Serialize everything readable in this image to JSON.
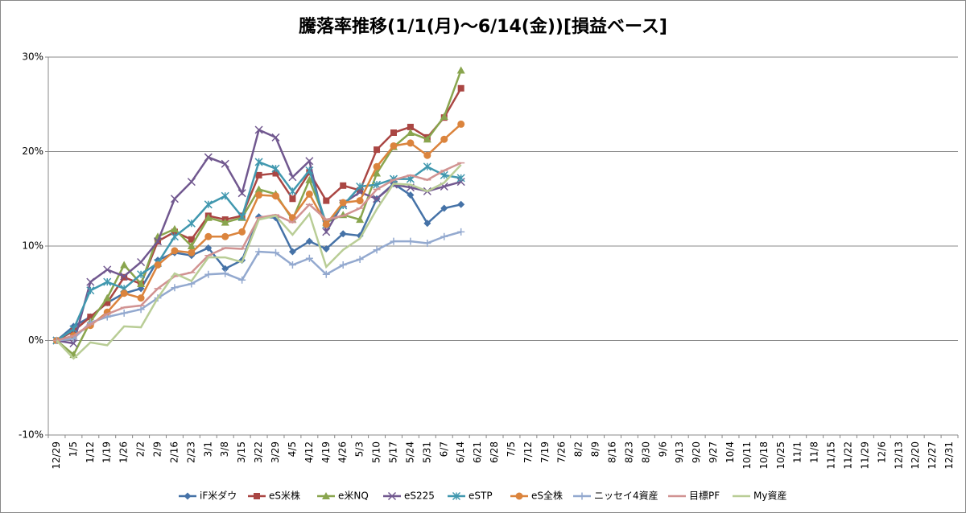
{
  "chart_data": {
    "type": "line",
    "title": "騰落率推移(1/1(月)～6/14(金))[損益ベース]",
    "categories": [
      "12/29",
      "1/5",
      "1/12",
      "1/19",
      "1/26",
      "2/2",
      "2/9",
      "2/16",
      "2/23",
      "3/1",
      "3/8",
      "3/15",
      "3/22",
      "3/29",
      "4/5",
      "4/12",
      "4/19",
      "4/26",
      "5/3",
      "5/10",
      "5/17",
      "5/24",
      "5/31",
      "6/7",
      "6/14",
      "6/21",
      "6/28",
      "7/5",
      "7/12",
      "7/19",
      "7/26",
      "8/2",
      "8/9",
      "8/16",
      "8/23",
      "8/30",
      "9/6",
      "9/13",
      "9/20",
      "9/27",
      "10/4",
      "10/11",
      "10/18",
      "10/25",
      "11/1",
      "11/8",
      "11/15",
      "11/22",
      "11/29",
      "12/6",
      "12/13",
      "12/20",
      "12/27",
      "12/31"
    ],
    "ylim": [
      -10,
      30
    ],
    "yticks": [
      {
        "value": -10,
        "label": "-10%"
      },
      {
        "value": 0,
        "label": "0%"
      },
      {
        "value": 10,
        "label": "10%"
      },
      {
        "value": 20,
        "label": "20%"
      },
      {
        "value": 30,
        "label": "30%"
      }
    ],
    "grid": true,
    "legend": "bottom",
    "series": [
      {
        "name": "iF米ダウ",
        "color": "#4572a7",
        "marker": "diamond",
        "values": [
          0,
          1.5,
          2.5,
          4,
          5,
          5.5,
          8.5,
          9.3,
          9,
          9.8,
          7.6,
          8.5,
          13.1,
          13,
          9.4,
          10.5,
          9.7,
          11.3,
          11.1,
          15,
          16.6,
          15.4,
          12.4,
          14,
          14.4,
          null,
          null,
          null,
          null,
          null,
          null,
          null,
          null,
          null,
          null,
          null,
          null,
          null,
          null,
          null,
          null,
          null,
          null,
          null,
          null,
          null,
          null,
          null,
          null,
          null,
          null,
          null,
          null,
          null
        ]
      },
      {
        "name": "eS米株",
        "color": "#aa4643",
        "marker": "square",
        "values": [
          0,
          1,
          2.5,
          4,
          6.7,
          6,
          10.5,
          11.5,
          10.7,
          13.2,
          12.8,
          13.2,
          17.5,
          17.7,
          15,
          17.8,
          14.8,
          16.4,
          15.9,
          20.2,
          22,
          22.6,
          21.5,
          23.6,
          26.7,
          null,
          null,
          null,
          null,
          null,
          null,
          null,
          null,
          null,
          null,
          null,
          null,
          null,
          null,
          null,
          null,
          null,
          null,
          null,
          null,
          null,
          null,
          null,
          null,
          null,
          null,
          null,
          null,
          null
        ]
      },
      {
        "name": "e米NQ",
        "color": "#89a54e",
        "marker": "triangle",
        "values": [
          0,
          -1.5,
          2,
          4.5,
          8,
          6,
          11,
          11.8,
          10,
          13,
          12.5,
          13,
          16,
          15.5,
          12.8,
          17,
          12.5,
          13.3,
          12.8,
          17.7,
          20.5,
          22,
          21.3,
          23.7,
          28.6,
          null,
          null,
          null,
          null,
          null,
          null,
          null,
          null,
          null,
          null,
          null,
          null,
          null,
          null,
          null,
          null,
          null,
          null,
          null,
          null,
          null,
          null,
          null,
          null,
          null,
          null,
          null,
          null,
          null
        ]
      },
      {
        "name": "eS225",
        "color": "#71588f",
        "marker": "x",
        "values": [
          0,
          -0.3,
          6.2,
          7.5,
          6.8,
          8.3,
          10.5,
          15,
          16.8,
          19.4,
          18.7,
          15.6,
          22.3,
          21.5,
          17.3,
          19,
          11.5,
          14.5,
          15.7,
          15,
          16.5,
          16.2,
          15.8,
          16.3,
          16.8,
          null,
          null,
          null,
          null,
          null,
          null,
          null,
          null,
          null,
          null,
          null,
          null,
          null,
          null,
          null,
          null,
          null,
          null,
          null,
          null,
          null,
          null,
          null,
          null,
          null,
          null,
          null,
          null,
          null
        ]
      },
      {
        "name": "eSTP",
        "color": "#4198af",
        "marker": "star",
        "values": [
          0,
          1.2,
          5.3,
          6.2,
          5.5,
          7,
          8.2,
          11,
          12.4,
          14.4,
          15.3,
          13.1,
          18.9,
          18.2,
          15.8,
          18,
          12.3,
          14.3,
          16.3,
          16.5,
          17.1,
          17.1,
          18.4,
          17.5,
          17.2,
          null,
          null,
          null,
          null,
          null,
          null,
          null,
          null,
          null,
          null,
          null,
          null,
          null,
          null,
          null,
          null,
          null,
          null,
          null,
          null,
          null,
          null,
          null,
          null,
          null,
          null,
          null,
          null,
          null
        ]
      },
      {
        "name": "eS全株",
        "color": "#db843d",
        "marker": "circle",
        "values": [
          0,
          0.5,
          1.6,
          3,
          5,
          4.5,
          8,
          9.5,
          9.3,
          11,
          11,
          11.5,
          15.4,
          15.3,
          13,
          15.5,
          12.3,
          14.6,
          14.8,
          18.4,
          20.6,
          20.9,
          19.6,
          21.3,
          22.9,
          null,
          null,
          null,
          null,
          null,
          null,
          null,
          null,
          null,
          null,
          null,
          null,
          null,
          null,
          null,
          null,
          null,
          null,
          null,
          null,
          null,
          null,
          null,
          null,
          null,
          null,
          null,
          null,
          null
        ]
      },
      {
        "name": "ニッセイ4資産",
        "color": "#93a9cf",
        "marker": "plus",
        "values": [
          0,
          0.2,
          1.9,
          2.5,
          2.9,
          3.3,
          4.5,
          5.6,
          6,
          7,
          7.1,
          6.4,
          9.4,
          9.3,
          8,
          8.7,
          7,
          8,
          8.6,
          9.6,
          10.5,
          10.5,
          10.3,
          11,
          11.5,
          null,
          null,
          null,
          null,
          null,
          null,
          null,
          null,
          null,
          null,
          null,
          null,
          null,
          null,
          null,
          null,
          null,
          null,
          null,
          null,
          null,
          null,
          null,
          null,
          null,
          null,
          null,
          null,
          null
        ]
      },
      {
        "name": "目標PF",
        "color": "#d19392",
        "marker": "dash",
        "values": [
          0,
          0.5,
          1.7,
          2.8,
          3.5,
          3.7,
          5.5,
          6.8,
          7.2,
          9,
          9.8,
          9.7,
          13,
          13.3,
          12.5,
          14.4,
          12.8,
          13.2,
          14,
          16,
          17,
          17.5,
          17,
          18,
          18.8,
          null,
          null,
          null,
          null,
          null,
          null,
          null,
          null,
          null,
          null,
          null,
          null,
          null,
          null,
          null,
          null,
          null,
          null,
          null,
          null,
          null,
          null,
          null,
          null,
          null,
          null,
          null,
          null,
          null
        ]
      },
      {
        "name": "My資産",
        "color": "#b9cd96",
        "marker": "none",
        "values": [
          0,
          -1.9,
          -0.2,
          -0.5,
          1.5,
          1.4,
          4.5,
          7.1,
          6.3,
          8.8,
          8.8,
          8.3,
          12.8,
          13.2,
          11.2,
          13.4,
          7.8,
          9.6,
          10.8,
          13.9,
          16.6,
          16.5,
          15.8,
          16.7,
          18.6,
          null,
          null,
          null,
          null,
          null,
          null,
          null,
          null,
          null,
          null,
          null,
          null,
          null,
          null,
          null,
          null,
          null,
          null,
          null,
          null,
          null,
          null,
          null,
          null,
          null,
          null,
          null,
          null,
          null
        ]
      }
    ]
  }
}
